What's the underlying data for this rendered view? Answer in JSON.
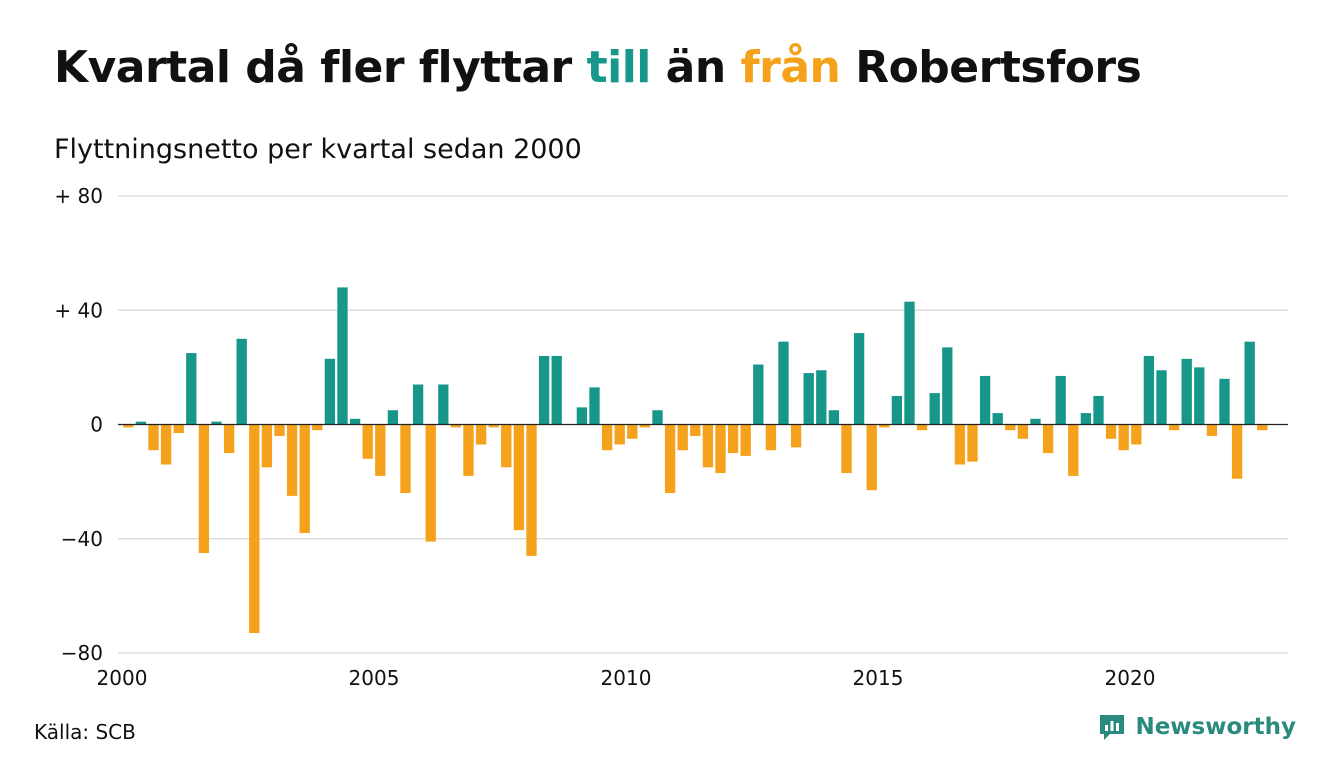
{
  "title": {
    "part1": "Kvartal då fler flyttar ",
    "to_word": "till",
    "part2": " än ",
    "from_word": "från",
    "part3": " Robertsfors"
  },
  "subtitle": "Flyttningsnetto per kvartal sedan 2000",
  "source": "Källa: SCB",
  "brand": {
    "name": "Newsworthy",
    "icon": "newsworthy-logo-icon"
  },
  "colors": {
    "positive": "#17978a",
    "negative": "#f5a11b",
    "grid": "#dddddd",
    "brand": "#2b8a7e"
  },
  "chart_data": {
    "type": "bar",
    "x_start": 2000,
    "periods_per_year": 4,
    "y_ticks": [
      "+ 80",
      "+ 40",
      "0",
      "−40",
      "−80"
    ],
    "y_tick_values": [
      80,
      40,
      0,
      -40,
      -80
    ],
    "x_ticks": [
      "2000",
      "2005",
      "2010",
      "2015",
      "2020"
    ],
    "x_tick_values": [
      2000,
      2005,
      2010,
      2015,
      2020
    ],
    "ylim": [
      -80,
      80
    ],
    "grid": true,
    "values": [
      -1,
      1,
      -9,
      -14,
      -3,
      25,
      -45,
      1,
      -10,
      30,
      -73,
      -15,
      -4,
      -25,
      -38,
      -2,
      23,
      48,
      2,
      -12,
      -18,
      5,
      -24,
      14,
      -41,
      14,
      -1,
      -18,
      -7,
      -1,
      -15,
      -37,
      -46,
      24,
      24,
      0,
      6,
      13,
      -9,
      -7,
      -5,
      -1,
      5,
      -24,
      -9,
      -4,
      -15,
      -17,
      -10,
      -11,
      21,
      -9,
      29,
      -8,
      18,
      19,
      5,
      -17,
      32,
      -23,
      -1,
      10,
      43,
      -2,
      11,
      27,
      -14,
      -13,
      17,
      4,
      -2,
      -5,
      2,
      -10,
      17,
      -18,
      4,
      10,
      -5,
      -9,
      -7,
      24,
      19,
      -2,
      23,
      20,
      -4,
      16,
      -19,
      29,
      -2
    ]
  }
}
